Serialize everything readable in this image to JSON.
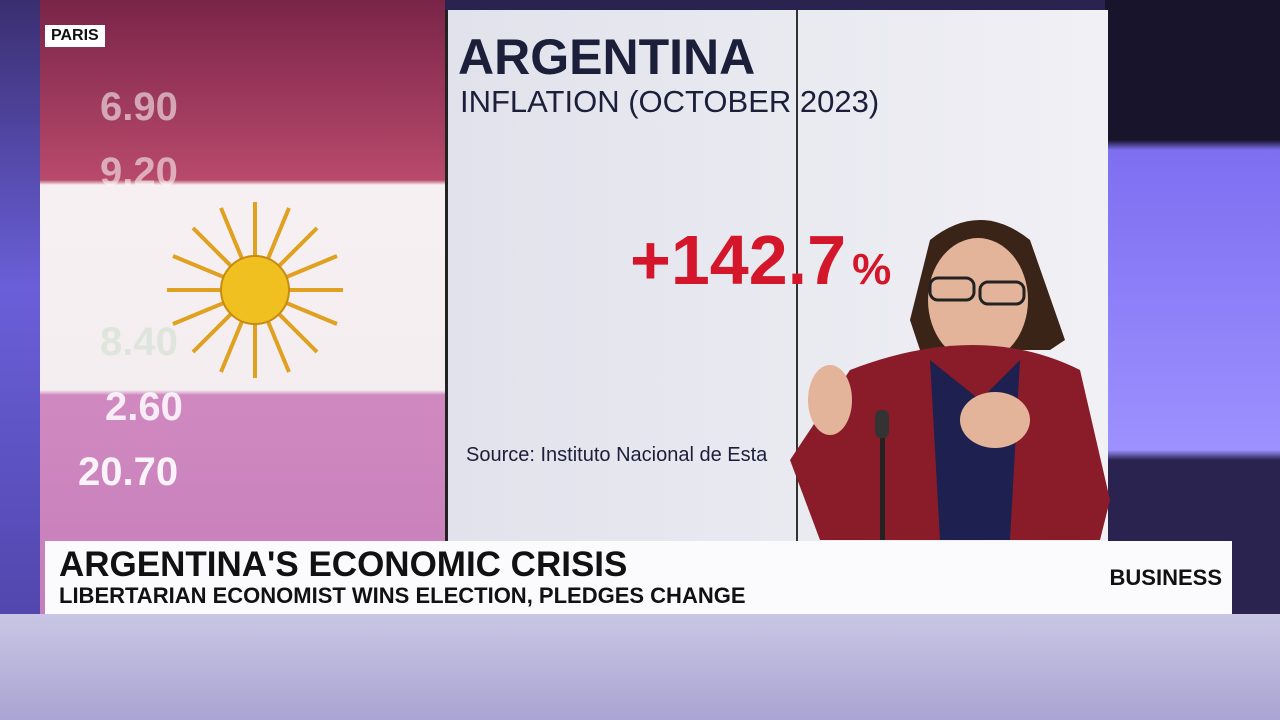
{
  "location_tag": "PARIS",
  "screen": {
    "title": "ARGENTINA",
    "subtitle": "INFLATION (OCTOBER 2023)",
    "figure": "+142.7",
    "figure_unit": "%",
    "source": "Source: Instituto Nacional de Esta"
  },
  "ticker_numbers": [
    "6.90",
    "9.20",
    "8.40",
    "2.60",
    "20.70"
  ],
  "lower_third": {
    "headline": "ARGENTINA'S ECONOMIC CRISIS",
    "subline": "LIBERTARIAN ECONOMIST WINS ELECTION, PLEDGES CHANGE",
    "section": "BUSINESS"
  }
}
